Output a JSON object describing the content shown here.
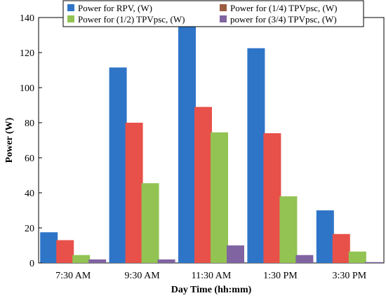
{
  "chart_data": {
    "type": "bar",
    "xlabel": "Day Time (hh:mm)",
    "ylabel": "Power (W)",
    "ylim": [
      0,
      140
    ],
    "yticks": [
      0,
      20,
      40,
      60,
      80,
      100,
      120,
      140
    ],
    "grid": false,
    "legend_position": "top",
    "categories": [
      "7:30 AM",
      "9:30 AM",
      "11:30 AM",
      "1:30 PM",
      "3:30 PM"
    ],
    "series": [
      {
        "name": "Power for RPV, (W)",
        "color": "#2E75C8",
        "values": [
          17.5,
          111.5,
          135,
          122.5,
          30
        ]
      },
      {
        "name": "Power for (1/4) TPVpsc, (W)",
        "color": "#E8514A",
        "values": [
          13,
          80,
          89,
          74,
          16.5
        ]
      },
      {
        "name": "Power for (1/2) TPVpsc, (W)",
        "color": "#92C353",
        "values": [
          4.5,
          45.5,
          74.5,
          38,
          6.5
        ]
      },
      {
        "name": "power for (3/4) TPVpsc, (W)",
        "color": "#8064A2",
        "values": [
          2,
          2,
          10,
          4.5,
          0.5
        ]
      }
    ],
    "legend_swatch_colors": [
      "#2E75C8",
      "#9C5D41",
      "#92C353",
      "#8064A2"
    ]
  }
}
